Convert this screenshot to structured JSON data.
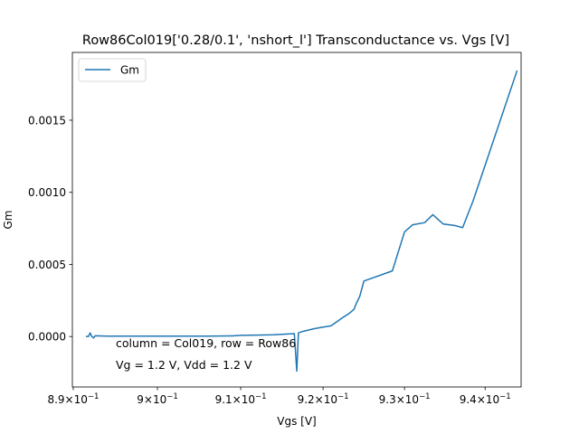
{
  "chart_data": {
    "type": "line",
    "title": "Row86Col019['0.28/0.1', 'nshort_l'] Transconductance vs. Vgs [V]",
    "xlabel": "Vgs [V]",
    "ylabel": "Gm",
    "x_scale": "log",
    "xlim": [
      0.8899,
      0.9445
    ],
    "ylim": [
      -0.00035,
      0.00197
    ],
    "x_ticks": [
      {
        "value": 0.89,
        "mantissa": "8.9",
        "base": "10",
        "exp": "−1"
      },
      {
        "value": 0.9,
        "mantissa": "9",
        "base": "10",
        "exp": "−1"
      },
      {
        "value": 0.91,
        "mantissa": "9.1",
        "base": "10",
        "exp": "−1"
      },
      {
        "value": 0.92,
        "mantissa": "9.2",
        "base": "10",
        "exp": "−1"
      },
      {
        "value": 0.93,
        "mantissa": "9.3",
        "base": "10",
        "exp": "−1"
      },
      {
        "value": 0.94,
        "mantissa": "9.4",
        "base": "10",
        "exp": "−1"
      }
    ],
    "y_ticks": [
      {
        "value": 0.0,
        "label": "0.0000"
      },
      {
        "value": 0.0005,
        "label": "0.0005"
      },
      {
        "value": 0.001,
        "label": "0.0010"
      },
      {
        "value": 0.0015,
        "label": "0.0015"
      }
    ],
    "legend_position": "top-left",
    "grid": false,
    "series": [
      {
        "name": "Gm",
        "color": "#1f77b4",
        "x": [
          0.8915,
          0.8918,
          0.892,
          0.8922,
          0.8924,
          0.8926,
          0.894,
          0.897,
          0.9,
          0.903,
          0.906,
          0.909,
          0.91,
          0.912,
          0.914,
          0.9165,
          0.9168,
          0.917,
          0.9175,
          0.919,
          0.921,
          0.9225,
          0.9232,
          0.9238,
          0.924,
          0.9245,
          0.925,
          0.9285,
          0.93,
          0.931,
          0.9325,
          0.9335,
          0.9348,
          0.9362,
          0.9372,
          0.9385,
          0.944
        ],
        "y": [
          0.0,
          0.0,
          2.5e-05,
          0.0,
          -1e-05,
          5e-06,
          3e-06,
          3e-06,
          3e-06,
          3e-06,
          3e-06,
          4e-06,
          8e-06,
          1e-05,
          1.2e-05,
          2e-05,
          -0.00024,
          2.5e-05,
          3.5e-05,
          5.5e-05,
          7.5e-05,
          0.000135,
          0.00016,
          0.00019,
          0.00022,
          0.00028,
          0.000385,
          0.000455,
          0.000725,
          0.000775,
          0.00079,
          0.000845,
          0.00078,
          0.00077,
          0.000755,
          0.00094,
          0.001845
        ]
      }
    ]
  },
  "annotations": [
    "column = Col019, row = Row86",
    "Vg = 1.2 V, Vdd = 1.2 V"
  ]
}
